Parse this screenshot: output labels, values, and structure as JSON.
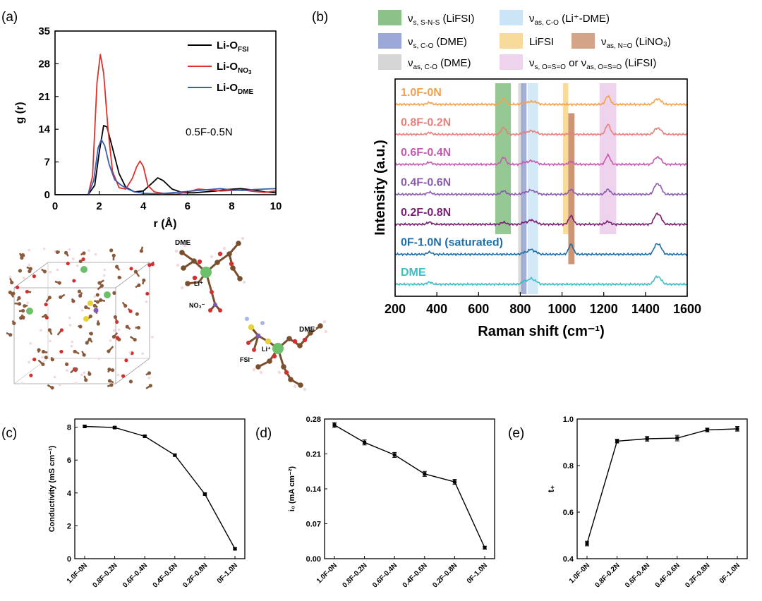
{
  "panel_labels": {
    "a": "(a)",
    "b": "(b)",
    "c": "(c)",
    "d": "(d)",
    "e": "(e)"
  },
  "colors": {
    "black": "#000000",
    "red": "#e0302c",
    "blue": "#3a5fb0"
  },
  "chart_data": [
    {
      "id": "a",
      "type": "line",
      "title": "",
      "xlabel": "r (Å)",
      "ylabel": "g (r)",
      "xlim": [
        0,
        10
      ],
      "ylim": [
        0,
        35
      ],
      "xticks": [
        "0",
        "2",
        "4",
        "6",
        "8",
        "10"
      ],
      "yticks": [
        "0",
        "7",
        "14",
        "21",
        "28",
        "35"
      ],
      "annotation": "0.5F-0.5N",
      "legend": [
        {
          "base": "Li-O",
          "sub": "FSI",
          "color": "#000000"
        },
        {
          "base": "Li-O",
          "sub": "NO",
          "subsub": "3",
          "color": "#e0302c"
        },
        {
          "base": "Li-O",
          "sub": "DME",
          "color": "#3a5fb0"
        }
      ],
      "series": [
        {
          "name": "Li-O FSI",
          "color": "#000000",
          "x": [
            0,
            1.5,
            1.8,
            2.0,
            2.2,
            2.35,
            2.6,
            2.9,
            3.2,
            3.6,
            4.0,
            4.4,
            4.65,
            4.9,
            5.3,
            5.8,
            6.3,
            6.8,
            7.3,
            7.8,
            8.4,
            9.0,
            9.5,
            10
          ],
          "y": [
            0,
            0,
            2,
            9,
            14.8,
            14.5,
            10,
            4.5,
            1.6,
            0.6,
            0.8,
            2.5,
            3.6,
            3.0,
            1.2,
            0.4,
            0.4,
            0.6,
            0.8,
            1.1,
            1.3,
            1.0,
            0.6,
            0.4
          ]
        },
        {
          "name": "Li-O NO3",
          "color": "#e0302c",
          "x": [
            0,
            1.5,
            1.7,
            1.9,
            2.05,
            2.2,
            2.4,
            2.6,
            2.9,
            3.2,
            3.5,
            3.7,
            3.85,
            4.0,
            4.2,
            4.5,
            5.0,
            5.5,
            6.0,
            6.5,
            7.0,
            7.5,
            8.0,
            8.5,
            9.0,
            9.5,
            10
          ],
          "y": [
            0,
            0,
            4,
            24,
            30,
            26,
            14,
            5,
            1.5,
            1.2,
            3.5,
            6.0,
            7.2,
            6.0,
            2.0,
            0.6,
            0.2,
            0.1,
            0.6,
            1.2,
            1.0,
            0.8,
            0.9,
            1.0,
            0.7,
            0.5,
            0.8
          ]
        },
        {
          "name": "Li-O DME",
          "color": "#3a5fb0",
          "x": [
            0,
            1.5,
            1.75,
            1.95,
            2.1,
            2.25,
            2.45,
            2.7,
            3.0,
            3.3,
            3.6,
            4.0,
            4.5,
            5.0,
            5.5,
            6.0,
            6.5,
            7.0,
            7.5,
            8.0,
            8.5,
            9.0,
            9.5,
            10
          ],
          "y": [
            0,
            0,
            3,
            10,
            11.8,
            10.5,
            6.5,
            3.2,
            2.0,
            1.2,
            0.6,
            0.3,
            0.2,
            0.3,
            0.5,
            0.7,
            0.9,
            1.1,
            1.3,
            1.0,
            0.9,
            1.1,
            1.2,
            1.3
          ]
        }
      ]
    },
    {
      "id": "b",
      "type": "line",
      "title": "",
      "xlabel": "Raman shift (cm⁻¹)",
      "ylabel": "Intensity (a.u.)",
      "xlim": [
        200,
        1600
      ],
      "xticks": [
        "200",
        "400",
        "600",
        "800",
        "1000",
        "1200",
        "1400",
        "1600"
      ],
      "legend": [
        {
          "symbol": "ν",
          "sub": "s, S-N-S",
          "text": " (LiFSI)",
          "color": "#3f9a3a"
        },
        {
          "symbol": "ν",
          "sub": "as, C-O",
          "text": " (Li⁺-DME)",
          "color": "#a9d4f2"
        },
        {
          "symbol": "ν",
          "sub": "s, C-O",
          "text": " (DME)",
          "color": "#5a6fbe"
        },
        {
          "symbol": "",
          "sub": "",
          "text": "LiFSI",
          "color": "#f4c257"
        },
        {
          "symbol": "ν",
          "sub": "as, N=O",
          "text": " (LiNO₃)",
          "color": "#b8673a"
        },
        {
          "symbol": "ν",
          "sub": "as, C-O",
          "text": " (DME)",
          "color": "#b9b9b9"
        },
        {
          "symbol": "ν",
          "sub": "s, O=S=O",
          "text": " or ",
          "symbol2": "ν",
          "sub2": "as, O=S=O",
          "text2": " (LiFSI)",
          "color": "#e3b5e0"
        }
      ],
      "bands": [
        {
          "label": "νs, S-N-S",
          "x1": 680,
          "x2": 755,
          "from_trace": 0,
          "to_trace": 4,
          "color": "#3f9a3a",
          "opacity": 0.55
        },
        {
          "label": "νas, C-O DME",
          "x1": 790,
          "x2": 810,
          "from_trace": 0,
          "to_trace": 6,
          "color": "#b9b9b9",
          "opacity": 0.55
        },
        {
          "label": "νs, C-O",
          "x1": 805,
          "x2": 830,
          "from_trace": 0,
          "to_trace": 6,
          "color": "#5a6fbe",
          "opacity": 0.55
        },
        {
          "label": "νas, C-O Li+-DME",
          "x1": 835,
          "x2": 885,
          "from_trace": 0,
          "to_trace": 6,
          "color": "#a9d4f2",
          "opacity": 0.5
        },
        {
          "label": "LiFSI",
          "x1": 1005,
          "x2": 1030,
          "from_trace": 0,
          "to_trace": 4,
          "color": "#f4c257",
          "opacity": 0.6
        },
        {
          "label": "νas, N=O",
          "x1": 1030,
          "x2": 1060,
          "from_trace": 1,
          "to_trace": 5,
          "color": "#b8673a",
          "opacity": 0.7
        },
        {
          "label": "νs,as O=S=O",
          "x1": 1180,
          "x2": 1260,
          "from_trace": 0,
          "to_trace": 4,
          "color": "#e3b5e0",
          "opacity": 0.6
        }
      ],
      "series": [
        {
          "name": "1.0F-0N",
          "label": "1.0F-0N",
          "color": "#f3a24a",
          "peaks": [
            [
              365,
              2.5
            ],
            [
              720,
              8
            ],
            [
              820,
              3
            ],
            [
              850,
              4
            ],
            [
              875,
              3
            ],
            [
              1220,
              12
            ],
            [
              1450,
              6
            ],
            [
              1470,
              5
            ]
          ]
        },
        {
          "name": "0.8F-0.2N",
          "label": "0.8F-0.2N",
          "color": "#e87f7a",
          "peaks": [
            [
              365,
              2.5
            ],
            [
              720,
              10
            ],
            [
              820,
              3
            ],
            [
              850,
              5
            ],
            [
              875,
              3
            ],
            [
              1043,
              2
            ],
            [
              1220,
              14
            ],
            [
              1450,
              7
            ],
            [
              1470,
              6
            ]
          ]
        },
        {
          "name": "0.6F-0.4N",
          "label": "0.6F-0.4N",
          "color": "#c65ab0",
          "peaks": [
            [
              365,
              3
            ],
            [
              720,
              10
            ],
            [
              820,
              3
            ],
            [
              850,
              5
            ],
            [
              875,
              3
            ],
            [
              1043,
              4
            ],
            [
              1220,
              13
            ],
            [
              1450,
              8
            ],
            [
              1470,
              7
            ]
          ]
        },
        {
          "name": "0.4F-0.6N",
          "label": "0.4F-0.6N",
          "color": "#8a5bb0",
          "peaks": [
            [
              365,
              3
            ],
            [
              720,
              5
            ],
            [
              820,
              3
            ],
            [
              850,
              6
            ],
            [
              875,
              3
            ],
            [
              1043,
              7
            ],
            [
              1220,
              7
            ],
            [
              1450,
              12
            ],
            [
              1470,
              10
            ]
          ]
        },
        {
          "name": "0.2F-0.8N",
          "label": "0.2F-0.8N",
          "color": "#7a1f74",
          "peaks": [
            [
              365,
              3
            ],
            [
              720,
              3
            ],
            [
              820,
              3
            ],
            [
              850,
              6
            ],
            [
              875,
              3
            ],
            [
              1043,
              12
            ],
            [
              1220,
              4
            ],
            [
              1450,
              12
            ],
            [
              1470,
              10
            ]
          ]
        },
        {
          "name": "0F-1.0N",
          "label": "0F-1.0N",
          "label_extra": " (saturated)",
          "color": "#1f6ea8",
          "peaks": [
            [
              365,
              3
            ],
            [
              820,
              3
            ],
            [
              850,
              7
            ],
            [
              875,
              3
            ],
            [
              1043,
              14
            ],
            [
              1450,
              12
            ],
            [
              1470,
              10
            ]
          ]
        },
        {
          "name": "DME",
          "label": "DME",
          "color": "#3fbdc4",
          "peaks": [
            [
              365,
              3
            ],
            [
              820,
              5
            ],
            [
              850,
              8
            ],
            [
              875,
              4
            ],
            [
              1450,
              9
            ],
            [
              1470,
              7
            ]
          ]
        }
      ]
    },
    {
      "id": "c",
      "type": "line",
      "title": "",
      "xlabel": "",
      "ylabel": "Conductivity (mS cm⁻¹)",
      "ylim": [
        0,
        8.5
      ],
      "yticks": [
        "0",
        "2",
        "4",
        "6",
        "8"
      ],
      "categories": [
        "1.0F-0N",
        "0.8F-0.2N",
        "0.6F-0.4N",
        "0.4F-0.6N",
        "0.2F-0.8N",
        "0F-1.0N"
      ],
      "values": [
        8.05,
        7.98,
        7.45,
        6.3,
        3.93,
        0.6
      ],
      "errors": [
        0.06,
        0.06,
        0.06,
        0.06,
        0.06,
        0.06
      ],
      "color": "#000000"
    },
    {
      "id": "d",
      "type": "line",
      "title": "",
      "xlabel": "",
      "ylabel": "i₀ (mA cm⁻²)",
      "ylim": [
        0,
        0.28
      ],
      "yticks": [
        "0.00",
        "0.07",
        "0.14",
        "0.21",
        "0.28"
      ],
      "categories": [
        "1.0F-0N",
        "0.8F-0.2N",
        "0.6F-0.4N",
        "0.4F-0.6N",
        "0.2F-0.8N",
        "0F-1.0N"
      ],
      "values": [
        0.268,
        0.233,
        0.208,
        0.17,
        0.154,
        0.022
      ],
      "errors": [
        0.005,
        0.005,
        0.005,
        0.005,
        0.005,
        0.003
      ],
      "color": "#000000"
    },
    {
      "id": "e",
      "type": "line",
      "title": "",
      "xlabel": "",
      "ylabel": "t₊",
      "ylim": [
        0.4,
        1.0
      ],
      "yticks": [
        "0.4",
        "0.6",
        "0.8",
        "1.0"
      ],
      "categories": [
        "1.0F-0N",
        "0.8F-0.2N",
        "0.6F-0.4N",
        "0.4F-0.6N",
        "0.2F-0.8N",
        "0F-1.0N"
      ],
      "values": [
        0.465,
        0.905,
        0.915,
        0.918,
        0.953,
        0.958
      ],
      "errors": [
        0.01,
        0.008,
        0.01,
        0.012,
        0.008,
        0.01
      ],
      "color": "#000000"
    }
  ],
  "structure": {
    "labels": {
      "dme_top": "DME",
      "li_top": "Li⁺",
      "no3": "NO₃⁻",
      "fsi": "FSI⁻",
      "li_bottom": "Li⁺",
      "dme_bottom": "DME"
    }
  }
}
